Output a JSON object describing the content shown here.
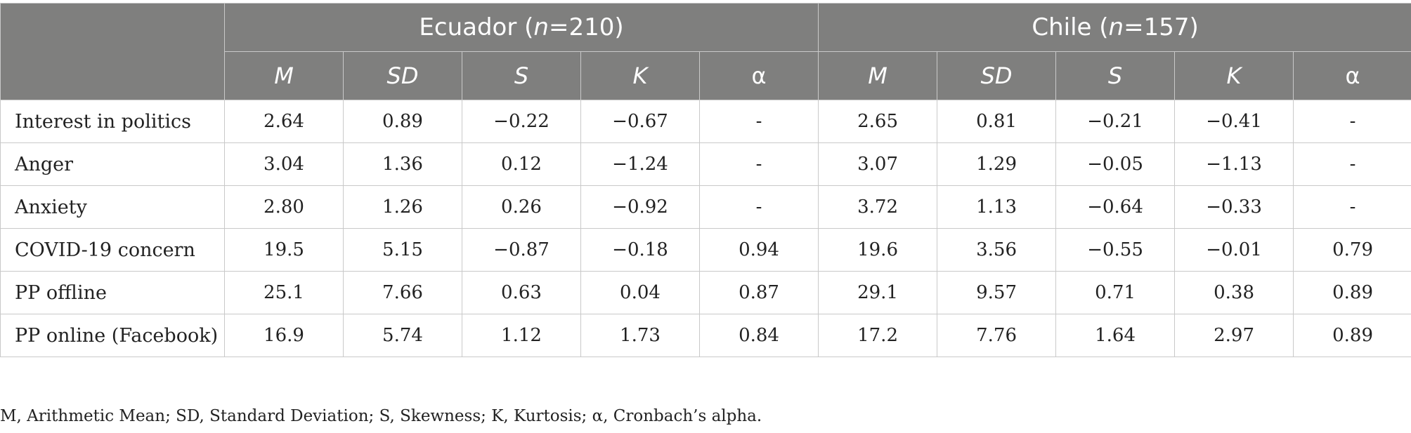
{
  "groups": [
    {
      "country": "Ecuador",
      "n_label": "n",
      "n_value": "210"
    },
    {
      "country": "Chile",
      "n_label": "n",
      "n_value": "157"
    }
  ],
  "columns": [
    "M",
    "SD",
    "S",
    "K",
    "α"
  ],
  "rows": [
    {
      "label": "Interest in politics",
      "values": [
        "2.64",
        "0.89",
        "−0.22",
        "−0.67",
        "-",
        "2.65",
        "0.81",
        "−0.21",
        "−0.41",
        "-"
      ]
    },
    {
      "label": "Anger",
      "values": [
        "3.04",
        "1.36",
        "0.12",
        "−1.24",
        "-",
        "3.07",
        "1.29",
        "−0.05",
        "−1.13",
        "-"
      ]
    },
    {
      "label": "Anxiety",
      "values": [
        "2.80",
        "1.26",
        "0.26",
        "−0.92",
        "-",
        "3.72",
        "1.13",
        "−0.64",
        "−0.33",
        "-"
      ]
    },
    {
      "label": "COVID-19 concern",
      "values": [
        "19.5",
        "5.15",
        "−0.87",
        "−0.18",
        "0.94",
        "19.6",
        "3.56",
        "−0.55",
        "−0.01",
        "0.79"
      ]
    },
    {
      "label": "PP offline",
      "values": [
        "25.1",
        "7.66",
        "0.63",
        "0.04",
        "0.87",
        "29.1",
        "9.57",
        "0.71",
        "0.38",
        "0.89"
      ]
    },
    {
      "label": "PP online (Facebook)",
      "values": [
        "16.9",
        "5.74",
        "1.12",
        "1.73",
        "0.84",
        "17.2",
        "7.76",
        "1.64",
        "2.97",
        "0.89"
      ]
    }
  ],
  "footnote": "M, Arithmetic Mean; SD, Standard Deviation; S, Skewness; K, Kurtosis; α, Cronbach’s alpha."
}
